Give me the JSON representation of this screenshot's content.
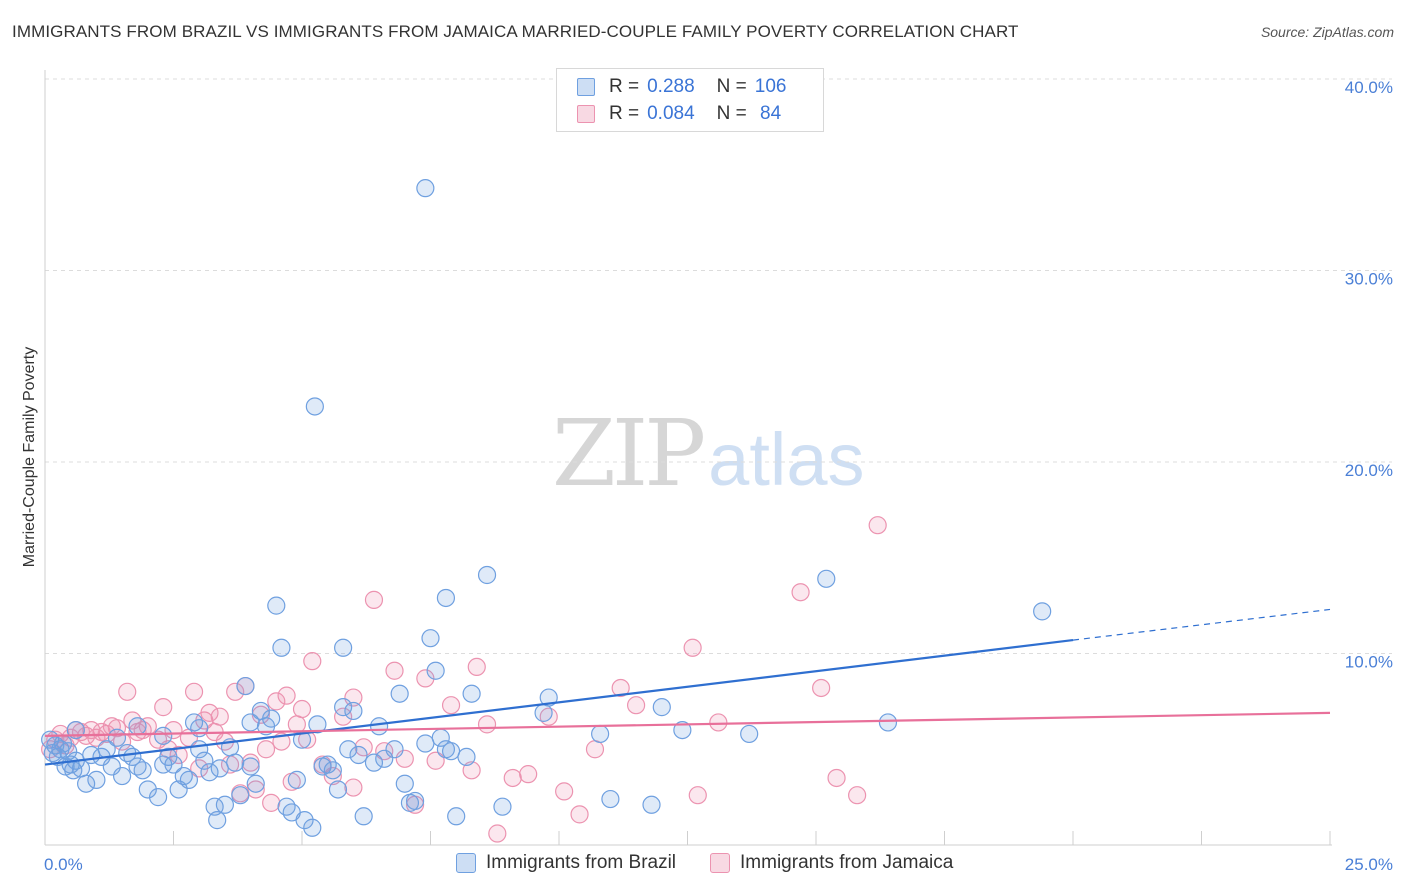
{
  "title": "IMMIGRANTS FROM BRAZIL VS IMMIGRANTS FROM JAMAICA MARRIED-COUPLE FAMILY POVERTY CORRELATION CHART",
  "source": "Source: ZipAtlas.com",
  "watermark": {
    "zip": "ZIP",
    "atlas": "atlas"
  },
  "colors": {
    "blue": "#6fa0e0",
    "blue_fill": "rgba(111,160,224,0.22)",
    "blue_line": "#2f6fd0",
    "pink": "#ec93b0",
    "pink_fill": "rgba(236,147,176,0.22)",
    "pink_line": "#e8709a",
    "tick_text": "#4a7fd6",
    "grid": "#dcdcdc"
  },
  "legend": {
    "rows": [
      {
        "r_label": "R =",
        "r_value": "0.288",
        "n_label": "N =",
        "n_value": "106"
      },
      {
        "r_label": "R =",
        "r_value": "0.084",
        "n_label": "N =",
        "n_value": " 84"
      }
    ]
  },
  "bottom_legend": [
    "Immigrants from Brazil",
    "Immigrants from Jamaica"
  ],
  "chart_data": {
    "type": "scatter",
    "title": "IMMIGRANTS FROM BRAZIL VS IMMIGRANTS FROM JAMAICA MARRIED-COUPLE FAMILY POVERTY CORRELATION CHART",
    "xlabel": "",
    "ylabel": "Married-Couple Family Poverty",
    "xlim": [
      0,
      25
    ],
    "ylim": [
      0,
      40
    ],
    "x_tick_labels": [
      "0.0%",
      "25.0%"
    ],
    "y_ticks": [
      10,
      20,
      30,
      40
    ],
    "y_tick_labels": [
      "10.0%",
      "20.0%",
      "30.0%",
      "40.0%"
    ],
    "grid": true,
    "series": [
      {
        "name": "Immigrants from Brazil",
        "R": 0.288,
        "N": 106,
        "trend": {
          "x0": 0,
          "y0": 4.2,
          "x1": 20,
          "y1": 10.7,
          "dashed_to_x": 25,
          "dashed_to_y": 12.3
        },
        "points": [
          [
            0.1,
            5.5
          ],
          [
            0.15,
            4.8
          ],
          [
            0.2,
            5.2
          ],
          [
            0.25,
            4.6
          ],
          [
            0.3,
            5.0
          ],
          [
            0.35,
            5.3
          ],
          [
            0.4,
            4.1
          ],
          [
            0.45,
            4.9
          ],
          [
            0.5,
            4.2
          ],
          [
            0.55,
            3.9
          ],
          [
            0.6,
            4.4
          ],
          [
            0.7,
            4.0
          ],
          [
            0.8,
            3.2
          ],
          [
            0.9,
            4.7
          ],
          [
            1.0,
            3.4
          ],
          [
            1.1,
            4.6
          ],
          [
            1.2,
            5.0
          ],
          [
            1.3,
            4.1
          ],
          [
            1.4,
            5.6
          ],
          [
            1.5,
            3.6
          ],
          [
            1.6,
            4.8
          ],
          [
            1.7,
            4.6
          ],
          [
            1.8,
            4.1
          ],
          [
            1.9,
            3.9
          ],
          [
            2.0,
            2.9
          ],
          [
            2.2,
            2.5
          ],
          [
            2.3,
            4.2
          ],
          [
            2.4,
            4.6
          ],
          [
            2.5,
            4.2
          ],
          [
            2.6,
            2.9
          ],
          [
            2.7,
            3.6
          ],
          [
            2.8,
            3.4
          ],
          [
            2.9,
            6.4
          ],
          [
            3.0,
            5.0
          ],
          [
            3.1,
            4.4
          ],
          [
            3.2,
            3.8
          ],
          [
            3.3,
            2.0
          ],
          [
            3.35,
            1.3
          ],
          [
            3.4,
            4.0
          ],
          [
            3.5,
            2.1
          ],
          [
            3.6,
            5.1
          ],
          [
            3.7,
            4.3
          ],
          [
            3.8,
            2.6
          ],
          [
            3.9,
            8.3
          ],
          [
            4.0,
            4.1
          ],
          [
            4.1,
            3.2
          ],
          [
            4.2,
            7.0
          ],
          [
            4.3,
            6.2
          ],
          [
            4.4,
            6.6
          ],
          [
            4.5,
            12.5
          ],
          [
            4.6,
            10.3
          ],
          [
            4.7,
            2.0
          ],
          [
            4.8,
            1.7
          ],
          [
            4.9,
            3.4
          ],
          [
            5.0,
            5.5
          ],
          [
            5.05,
            1.3
          ],
          [
            5.2,
            0.9
          ],
          [
            5.3,
            6.3
          ],
          [
            5.4,
            4.1
          ],
          [
            5.5,
            4.2
          ],
          [
            5.6,
            3.9
          ],
          [
            5.7,
            2.9
          ],
          [
            5.8,
            7.2
          ],
          [
            5.9,
            5.0
          ],
          [
            6.0,
            7.0
          ],
          [
            6.1,
            4.7
          ],
          [
            6.2,
            1.5
          ],
          [
            6.4,
            4.3
          ],
          [
            6.5,
            6.2
          ],
          [
            6.6,
            4.5
          ],
          [
            6.8,
            5.0
          ],
          [
            6.9,
            7.9
          ],
          [
            7.0,
            3.2
          ],
          [
            7.1,
            2.2
          ],
          [
            7.2,
            2.3
          ],
          [
            7.4,
            5.3
          ],
          [
            7.5,
            10.8
          ],
          [
            7.6,
            9.1
          ],
          [
            7.7,
            5.6
          ],
          [
            7.8,
            5.0
          ],
          [
            7.9,
            4.9
          ],
          [
            8.0,
            1.5
          ],
          [
            8.2,
            4.6
          ],
          [
            8.3,
            7.9
          ],
          [
            8.6,
            14.1
          ],
          [
            8.9,
            2.0
          ],
          [
            9.7,
            6.9
          ],
          [
            9.8,
            7.7
          ],
          [
            10.8,
            5.8
          ],
          [
            11.0,
            2.4
          ],
          [
            11.8,
            2.1
          ],
          [
            12.0,
            7.2
          ],
          [
            12.4,
            6.0
          ],
          [
            13.7,
            5.8
          ],
          [
            15.2,
            13.9
          ],
          [
            16.4,
            6.4
          ],
          [
            19.4,
            12.2
          ],
          [
            5.25,
            22.9
          ],
          [
            7.4,
            34.3
          ],
          [
            7.8,
            12.9
          ],
          [
            5.8,
            10.3
          ],
          [
            4.0,
            6.4
          ],
          [
            3.0,
            6.1
          ],
          [
            1.8,
            6.2
          ],
          [
            2.3,
            5.7
          ],
          [
            0.6,
            6.0
          ]
        ]
      },
      {
        "name": "Immigrants from Jamaica",
        "R": 0.084,
        "N": 84,
        "trend": {
          "x0": 0,
          "y0": 5.7,
          "x1": 25,
          "y1": 6.9
        },
        "points": [
          [
            0.1,
            5.0
          ],
          [
            0.2,
            5.5
          ],
          [
            0.3,
            5.8
          ],
          [
            0.4,
            5.2
          ],
          [
            0.5,
            5.6
          ],
          [
            0.6,
            6.0
          ],
          [
            0.7,
            5.9
          ],
          [
            0.8,
            5.7
          ],
          [
            0.9,
            6.0
          ],
          [
            1.0,
            5.6
          ],
          [
            1.1,
            5.9
          ],
          [
            1.2,
            5.8
          ],
          [
            1.3,
            6.2
          ],
          [
            1.4,
            6.1
          ],
          [
            1.5,
            5.4
          ],
          [
            1.6,
            8.0
          ],
          [
            1.7,
            6.5
          ],
          [
            1.8,
            5.9
          ],
          [
            1.9,
            6.0
          ],
          [
            2.0,
            6.2
          ],
          [
            2.2,
            5.5
          ],
          [
            2.3,
            7.2
          ],
          [
            2.4,
            5.0
          ],
          [
            2.5,
            6.0
          ],
          [
            2.6,
            4.7
          ],
          [
            2.8,
            5.6
          ],
          [
            2.9,
            8.0
          ],
          [
            3.0,
            4.0
          ],
          [
            3.1,
            6.5
          ],
          [
            3.2,
            6.9
          ],
          [
            3.3,
            5.9
          ],
          [
            3.4,
            6.7
          ],
          [
            3.5,
            5.4
          ],
          [
            3.6,
            4.2
          ],
          [
            3.7,
            8.0
          ],
          [
            3.8,
            2.7
          ],
          [
            3.9,
            8.3
          ],
          [
            4.0,
            4.3
          ],
          [
            4.1,
            2.9
          ],
          [
            4.2,
            6.8
          ],
          [
            4.3,
            5.0
          ],
          [
            4.4,
            2.2
          ],
          [
            4.5,
            7.5
          ],
          [
            4.6,
            5.4
          ],
          [
            4.7,
            7.8
          ],
          [
            4.8,
            3.3
          ],
          [
            4.9,
            6.3
          ],
          [
            5.0,
            7.1
          ],
          [
            5.1,
            5.5
          ],
          [
            5.2,
            9.6
          ],
          [
            5.4,
            4.2
          ],
          [
            5.6,
            3.6
          ],
          [
            5.8,
            6.7
          ],
          [
            6.0,
            7.7
          ],
          [
            6.2,
            5.1
          ],
          [
            6.4,
            12.8
          ],
          [
            6.6,
            4.9
          ],
          [
            6.8,
            9.1
          ],
          [
            7.0,
            4.5
          ],
          [
            7.2,
            2.1
          ],
          [
            7.4,
            8.7
          ],
          [
            7.6,
            4.4
          ],
          [
            7.9,
            7.3
          ],
          [
            8.3,
            3.9
          ],
          [
            8.4,
            9.3
          ],
          [
            8.6,
            6.3
          ],
          [
            8.8,
            0.6
          ],
          [
            9.1,
            3.5
          ],
          [
            9.4,
            3.7
          ],
          [
            9.8,
            6.7
          ],
          [
            10.1,
            2.8
          ],
          [
            10.4,
            1.6
          ],
          [
            10.7,
            5.0
          ],
          [
            11.2,
            8.2
          ],
          [
            11.5,
            7.3
          ],
          [
            12.6,
            10.3
          ],
          [
            12.7,
            2.6
          ],
          [
            13.1,
            6.4
          ],
          [
            14.7,
            13.2
          ],
          [
            15.1,
            8.2
          ],
          [
            15.4,
            3.5
          ],
          [
            15.8,
            2.6
          ],
          [
            16.2,
            16.7
          ],
          [
            6.0,
            3.0
          ]
        ]
      }
    ]
  }
}
